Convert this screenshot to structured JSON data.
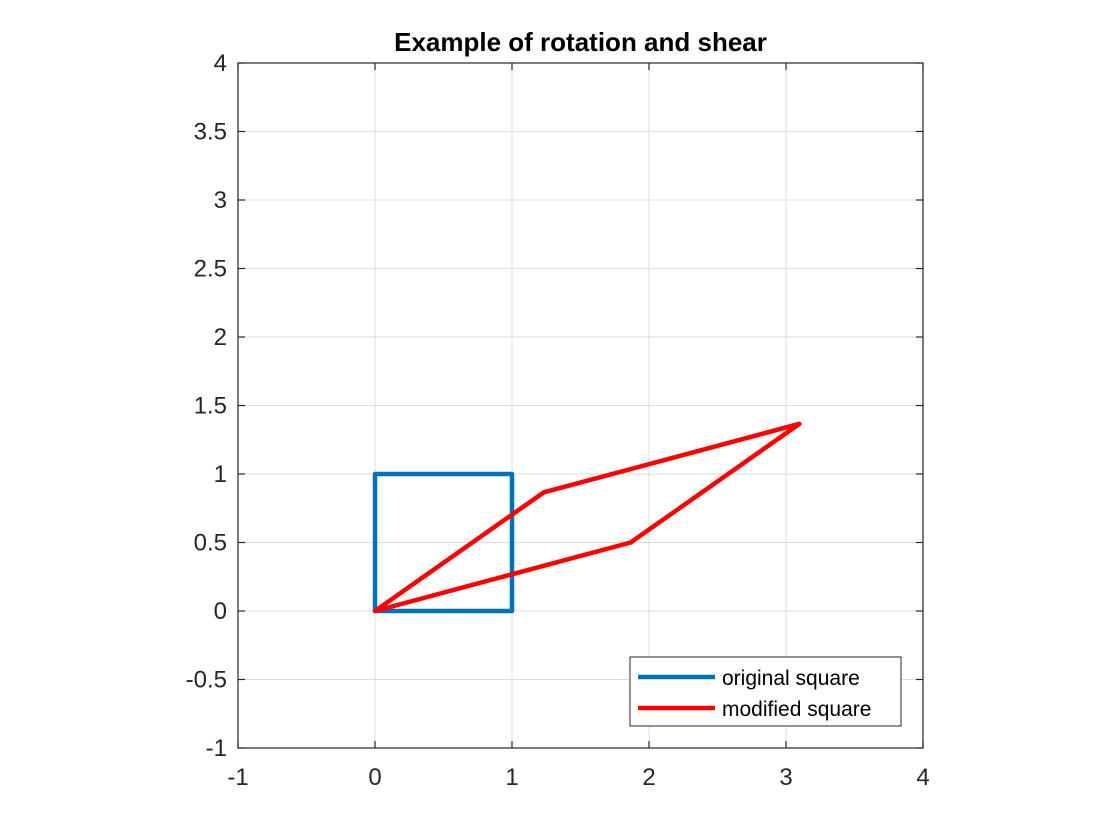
{
  "chart_data": {
    "type": "line",
    "title": "Example of rotation and shear",
    "xlabel": "",
    "ylabel": "",
    "xlim": [
      -1,
      4
    ],
    "ylim": [
      -1,
      4
    ],
    "xticks": [
      -1,
      0,
      1,
      2,
      3,
      4
    ],
    "yticks": [
      -1,
      -0.5,
      0,
      0.5,
      1,
      1.5,
      2,
      2.5,
      3,
      3.5,
      4
    ],
    "xtick_labels": [
      "-1",
      "0",
      "1",
      "2",
      "3",
      "4"
    ],
    "ytick_labels": [
      "-1",
      "-0.5",
      "0",
      "0.5",
      "1",
      "1.5",
      "2",
      "2.5",
      "3",
      "3.5",
      "4"
    ],
    "grid": true,
    "legend_position": "bottom-right",
    "series": [
      {
        "name": "original square",
        "color": "#0072BD",
        "x": [
          0,
          1,
          1,
          0,
          0
        ],
        "y": [
          0,
          0,
          1,
          1,
          0
        ]
      },
      {
        "name": "modified square",
        "color": "#FF0000",
        "x": [
          0,
          1.866,
          3.098,
          1.232,
          0
        ],
        "y": [
          0,
          0.5,
          1.366,
          0.866,
          0
        ]
      }
    ]
  }
}
